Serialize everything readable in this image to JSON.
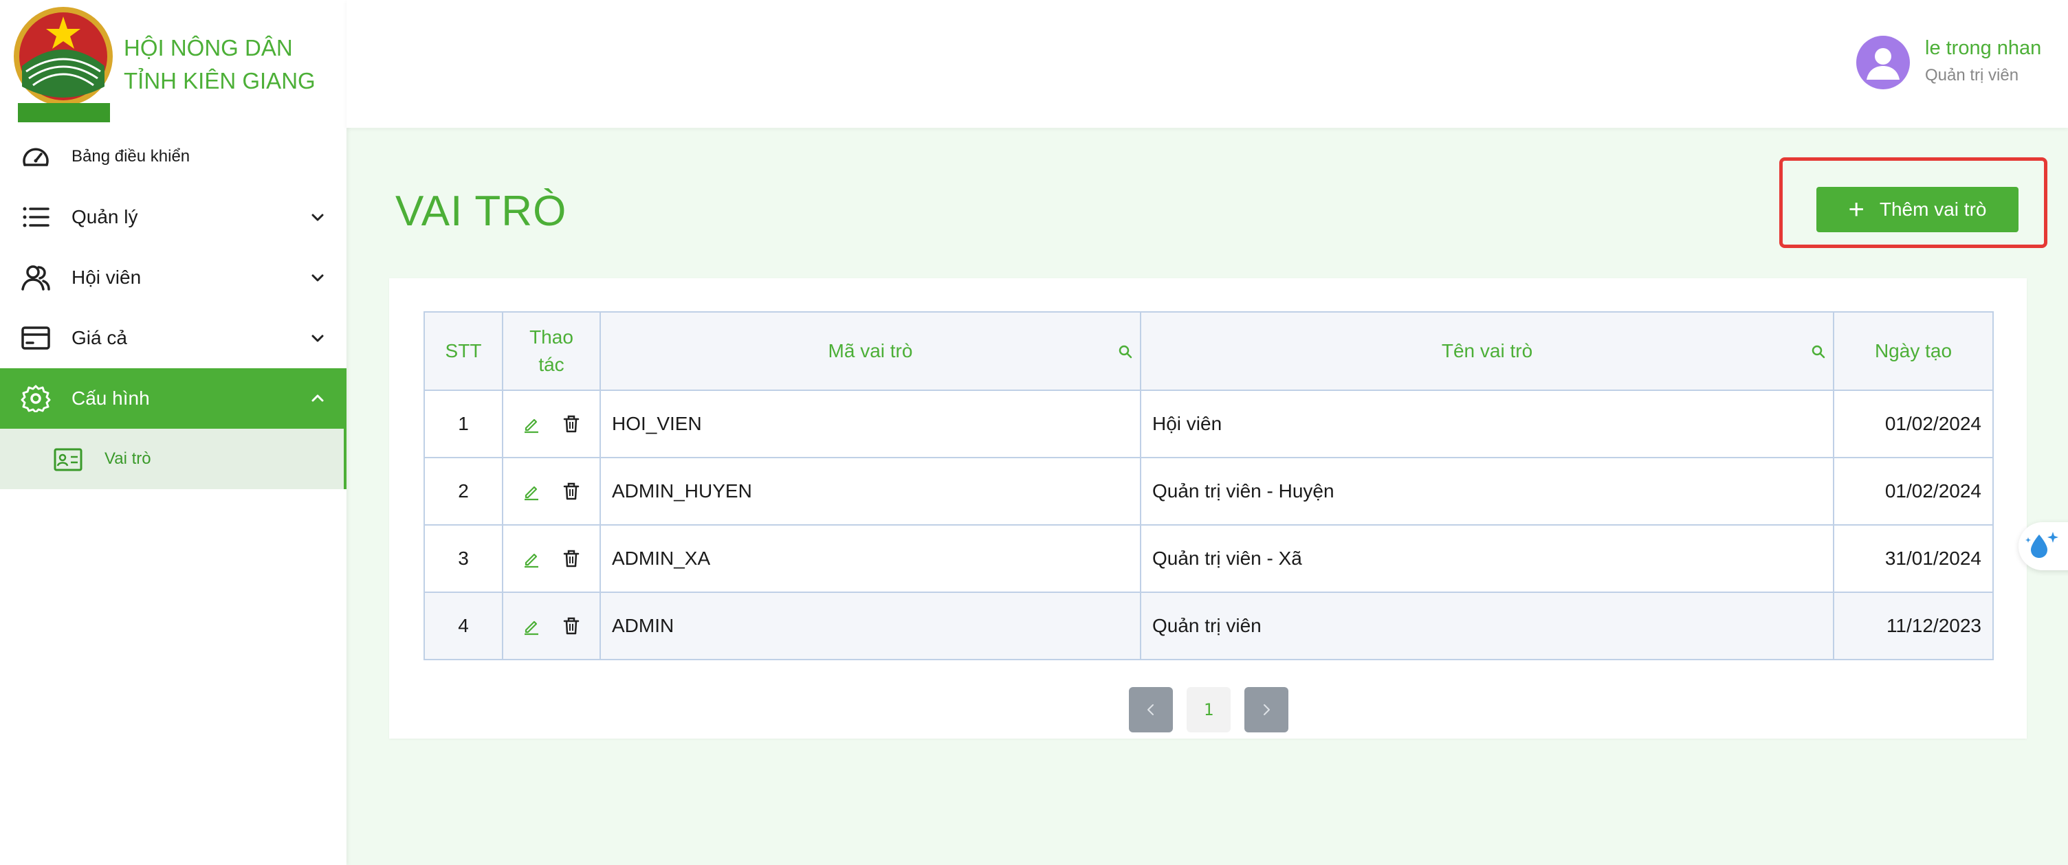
{
  "app": {
    "brand_name": "HỘI NÔNG DÂN TỈNH KIÊN GIANG",
    "logo_text": "HỘI NÔNG DÂN TỈNH KIÊN GIANG",
    "accent_color": "#4caf37"
  },
  "sidebar": {
    "items": [
      {
        "label": "Bảng điều khiển",
        "icon": "dashboard-gauge-icon"
      },
      {
        "label": "Quản lý",
        "icon": "list-icon",
        "expandable": true
      },
      {
        "label": "Hội viên",
        "icon": "members-icon",
        "expandable": true
      },
      {
        "label": "Giá cả",
        "icon": "card-icon",
        "expandable": true
      },
      {
        "label": "Cấu hình",
        "icon": "gear-icon",
        "expandable": true,
        "active": true
      }
    ],
    "subitems": [
      {
        "label": "Vai trò",
        "icon": "id-card-icon",
        "active": true
      }
    ]
  },
  "header": {
    "user_name": "le trong nhan",
    "user_role": "Quản trị viên"
  },
  "main": {
    "title": "VAI TRÒ",
    "add_button_label": "Thêm vai trò",
    "table": {
      "columns": [
        "STT",
        "Thao tác",
        "Mã vai trò",
        "Tên vai trò",
        "Ngày tạo"
      ],
      "rows": [
        {
          "stt": "1",
          "code": "HOI_VIEN",
          "name": "Hội viên",
          "date": "01/02/2024"
        },
        {
          "stt": "2",
          "code": "ADMIN_HUYEN",
          "name": "Quản trị viên - Huyện",
          "date": "01/02/2024"
        },
        {
          "stt": "3",
          "code": "ADMIN_XA",
          "name": "Quản trị viên - Xã",
          "date": "31/01/2024"
        },
        {
          "stt": "4",
          "code": "ADMIN",
          "name": "Quản trị viên",
          "date": "11/12/2023"
        }
      ]
    },
    "pagination": {
      "current_page": "1"
    }
  }
}
